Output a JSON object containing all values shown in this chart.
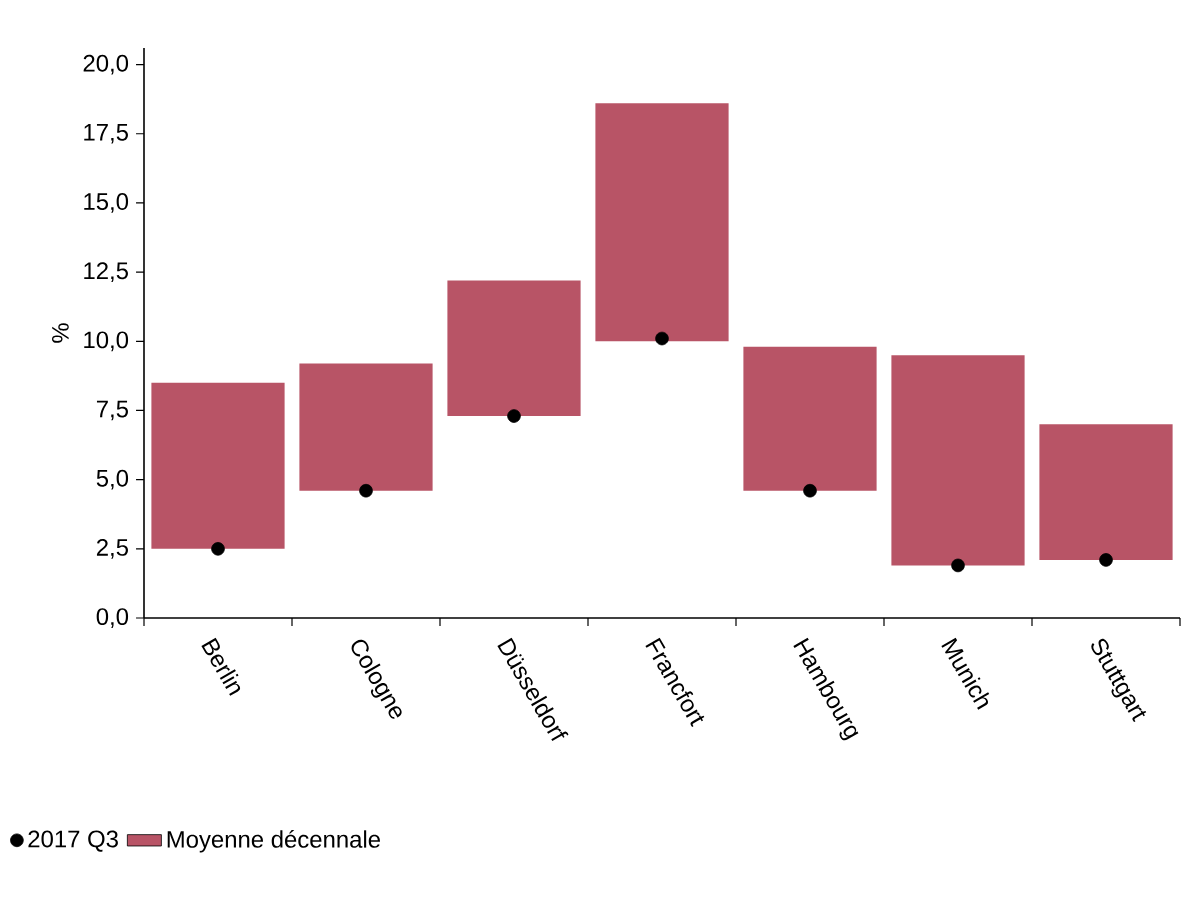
{
  "chart_data": {
    "type": "bar",
    "ylabel": "%",
    "categories": [
      "Berlin",
      "Cologne",
      "Düsseldorf",
      "Francfort",
      "Hambourg",
      "Munich",
      "Stuttgart"
    ],
    "series": [
      {
        "name": "Moyenne décennale",
        "color": "#b85466",
        "base": [
          2.5,
          4.6,
          7.3,
          10.0,
          4.6,
          1.9,
          2.1
        ],
        "values": [
          6.0,
          4.6,
          4.9,
          8.6,
          5.2,
          7.6,
          4.9
        ]
      },
      {
        "name": "2017 Q3",
        "type": "scatter",
        "color": "#000000",
        "x": [
          "Berlin",
          "Cologne",
          "Düsseldorf",
          "Francfort",
          "Hambourg",
          "Munich",
          "Stuttgart"
        ],
        "values": [
          2.5,
          4.6,
          7.3,
          10.1,
          4.6,
          1.9,
          2.1
        ]
      }
    ],
    "ylim": [
      0,
      20.6
    ],
    "yticks": [
      {
        "value": 0,
        "label": "0,0"
      },
      {
        "value": 2.5,
        "label": "2,5"
      },
      {
        "value": 5,
        "label": "5,0"
      },
      {
        "value": 7.5,
        "label": "7,5"
      },
      {
        "value": 10,
        "label": "10,0"
      },
      {
        "value": 12.5,
        "label": "12,5"
      },
      {
        "value": 15,
        "label": "15,0"
      },
      {
        "value": 17.5,
        "label": "17,5"
      },
      {
        "value": 20,
        "label": "20,0"
      }
    ],
    "grid": false,
    "legend": "bottom left"
  }
}
